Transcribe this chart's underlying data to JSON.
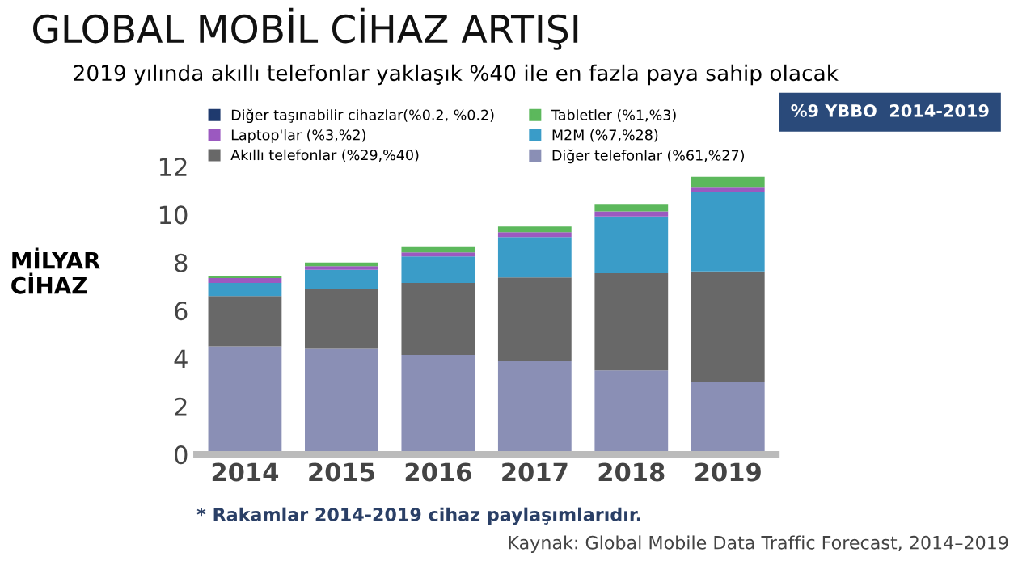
{
  "chart_data": {
    "type": "bar",
    "stacked": true,
    "title": "GLOBAL MOBİL CİHAZ ARTIŞI",
    "subtitle": "2019 yılında akıllı telefonlar yaklaşık %40 ile en fazla paya sahip olacak",
    "ylabel": "MİLYAR\nCİHAZ",
    "categories": [
      "2014",
      "2015",
      "2016",
      "2017",
      "2018",
      "2019"
    ],
    "series": [
      {
        "name": "Diğer telefonlar (%61,%27)",
        "color": "#8a8fb5",
        "values": [
          4.5,
          4.4,
          4.15,
          3.88,
          3.5,
          3.02
        ]
      },
      {
        "name": "Akıllı telefonlar (%29,%40)",
        "color": "#686868",
        "values": [
          2.1,
          2.5,
          3.0,
          3.5,
          4.05,
          4.61
        ]
      },
      {
        "name": "M2M (%7,%28)",
        "color": "#3a9cc8",
        "values": [
          0.55,
          0.8,
          1.1,
          1.68,
          2.37,
          3.33
        ]
      },
      {
        "name": "Laptop'lar (%3,%2)",
        "color": "#9b59c0",
        "values": [
          0.2,
          0.15,
          0.17,
          0.2,
          0.21,
          0.19
        ]
      },
      {
        "name": "Tabletler (%1,%3)",
        "color": "#5cb85c",
        "values": [
          0.1,
          0.15,
          0.25,
          0.24,
          0.31,
          0.42
        ]
      },
      {
        "name": "Diğer taşınabilir cihazlar(%0.2, %0.2)",
        "color": "#1f3a6e",
        "values": [
          null,
          null,
          null,
          null,
          null,
          null
        ]
      }
    ],
    "ylim": [
      0,
      14.5
    ],
    "yticks": [
      0,
      2,
      4,
      6,
      8,
      10,
      12
    ],
    "grid": false,
    "legend": "top left",
    "annotations": [
      "%9 YBBO  2014-2019",
      "* Rakamlar 2014-2019 cihaz paylaşımlarıdır.",
      "Kaynak: Global Mobile Data Traffic Forecast, 2014–2019"
    ]
  }
}
